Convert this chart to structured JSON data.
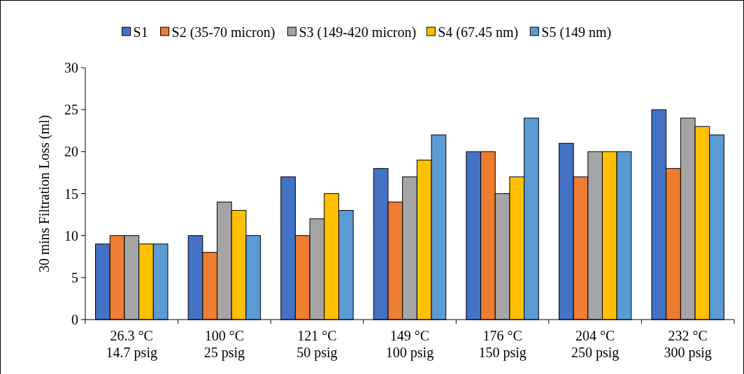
{
  "chart_data": {
    "type": "bar",
    "ylabel": "30 mins Filtration Loss (ml)",
    "categories": [
      "26.3 °C\n14.7 psig",
      "100 °C\n25 psig",
      "121 °C\n50 psig",
      "149 °C\n100 psig",
      "176 °C\n150 psig",
      "204 °C\n250 psig",
      "232 °C\n300 psig"
    ],
    "series": [
      {
        "name": "S1",
        "color": "#4472c4",
        "values": [
          9,
          10,
          17,
          18,
          20,
          21,
          25
        ]
      },
      {
        "name": "S2 (35-70 micron)",
        "color": "#ed7d31",
        "values": [
          10,
          8,
          10,
          14,
          20,
          17,
          18
        ]
      },
      {
        "name": "S3 (149-420 micron)",
        "color": "#a5a5a5",
        "values": [
          10,
          14,
          12,
          17,
          15,
          20,
          24
        ]
      },
      {
        "name": "S4 (67.45 nm)",
        "color": "#ffc000",
        "values": [
          9,
          13,
          15,
          19,
          17,
          20,
          23
        ]
      },
      {
        "name": "S5 (149 nm)",
        "color": "#5b9bd5",
        "values": [
          9,
          10,
          13,
          22,
          24,
          20,
          22
        ]
      }
    ],
    "ylim": [
      0,
      30
    ],
    "yticks": [
      0,
      5,
      10,
      15,
      20,
      25,
      30
    ],
    "legend": "top",
    "grid": false
  }
}
